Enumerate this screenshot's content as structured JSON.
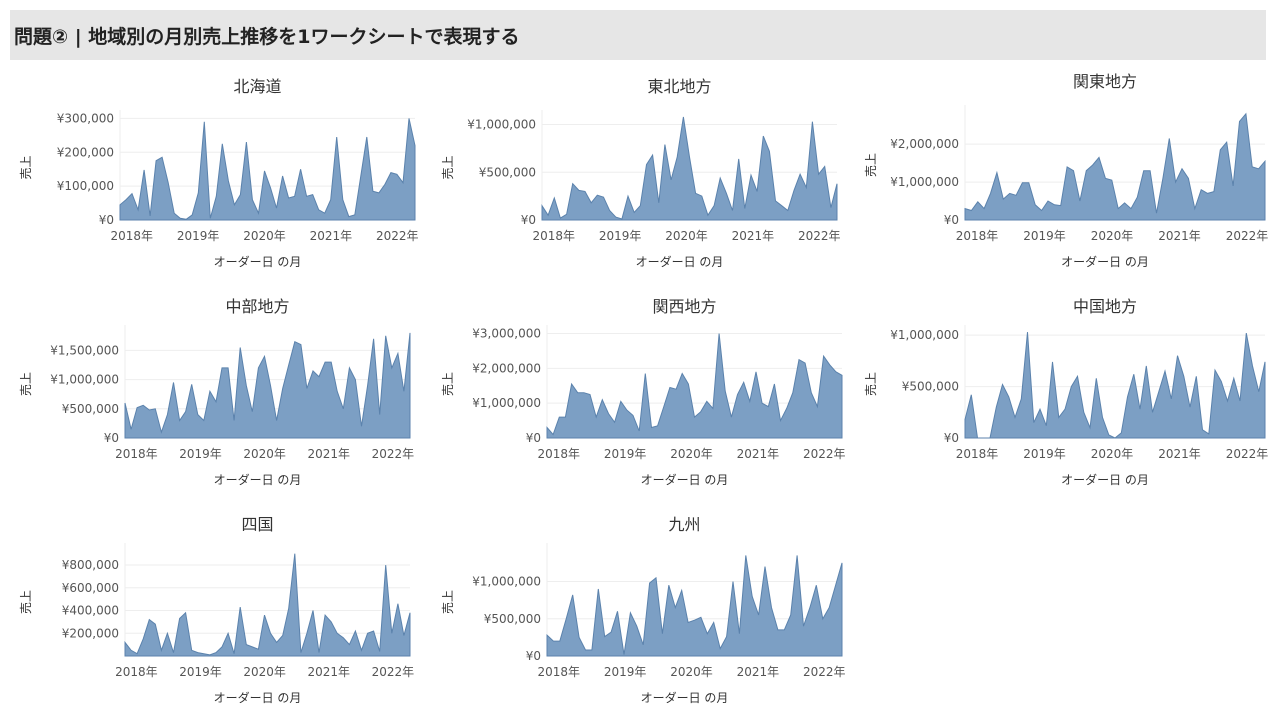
{
  "page": {
    "title": "問題② | 地域別の月別売上推移を1ワークシートで表現する"
  },
  "chart_data": [
    {
      "type": "area",
      "title": "北海道",
      "xlabel": "オーダー日 の月",
      "ylabel": "売上",
      "x_ticks": [
        "2018年",
        "2019年",
        "2020年",
        "2021年",
        "2022年"
      ],
      "y_ticks": [
        "¥0",
        "¥100,000",
        "¥200,000",
        "¥300,000"
      ],
      "y_tick_values": [
        0,
        100000,
        200000,
        300000
      ],
      "ylim": [
        0,
        310000
      ],
      "values": [
        45000,
        60000,
        78000,
        30000,
        148000,
        12000,
        175000,
        185000,
        110000,
        20000,
        5000,
        2000,
        15000,
        80000,
        290000,
        5000,
        70000,
        225000,
        115000,
        45000,
        75000,
        230000,
        60000,
        20000,
        145000,
        95000,
        35000,
        130000,
        65000,
        70000,
        150000,
        70000,
        75000,
        30000,
        20000,
        60000,
        245000,
        60000,
        10000,
        15000,
        130000,
        245000,
        85000,
        80000,
        105000,
        140000,
        135000,
        110000,
        300000,
        220000
      ]
    },
    {
      "type": "area",
      "title": "東北地方",
      "xlabel": "オーダー日 の月",
      "ylabel": "売上",
      "x_ticks": [
        "2018年",
        "2019年",
        "2020年",
        "2021年",
        "2022年"
      ],
      "y_ticks": [
        "¥0",
        "¥500,000",
        "¥1,000,000"
      ],
      "y_tick_values": [
        0,
        500000,
        1000000
      ],
      "ylim": [
        0,
        1100000
      ],
      "values": [
        150000,
        50000,
        230000,
        20000,
        60000,
        380000,
        310000,
        300000,
        180000,
        260000,
        240000,
        100000,
        30000,
        10000,
        250000,
        80000,
        150000,
        580000,
        680000,
        180000,
        790000,
        420000,
        660000,
        1080000,
        660000,
        280000,
        250000,
        50000,
        150000,
        440000,
        280000,
        100000,
        640000,
        120000,
        470000,
        300000,
        880000,
        720000,
        200000,
        150000,
        100000,
        310000,
        480000,
        340000,
        1030000,
        480000,
        560000,
        130000,
        380000
      ]
    },
    {
      "type": "area",
      "title": "関東地方",
      "xlabel": "オーダー日 の月",
      "ylabel": "売上",
      "x_ticks": [
        "2018年",
        "2019年",
        "2020年",
        "2021年",
        "2022年"
      ],
      "y_ticks": [
        "¥0",
        "¥1,000,000",
        "¥2,000,000"
      ],
      "y_tick_values": [
        0,
        1000000,
        2000000
      ],
      "ylim": [
        0,
        2900000
      ],
      "values": [
        300000,
        250000,
        480000,
        300000,
        700000,
        1250000,
        550000,
        700000,
        650000,
        980000,
        980000,
        400000,
        250000,
        500000,
        400000,
        380000,
        1400000,
        1300000,
        500000,
        1300000,
        1450000,
        1650000,
        1100000,
        1050000,
        300000,
        450000,
        300000,
        600000,
        1300000,
        1300000,
        180000,
        1100000,
        2150000,
        1000000,
        1350000,
        1100000,
        300000,
        800000,
        700000,
        750000,
        1850000,
        2050000,
        900000,
        2600000,
        2800000,
        1400000,
        1350000,
        1550000
      ]
    },
    {
      "type": "area",
      "title": "中部地方",
      "xlabel": "オーダー日 の月",
      "ylabel": "売上",
      "x_ticks": [
        "2018年",
        "2019年",
        "2020年",
        "2021年",
        "2022年"
      ],
      "y_ticks": [
        "¥0",
        "¥500,000",
        "¥1,000,000",
        "¥1,500,000"
      ],
      "y_tick_values": [
        0,
        500000,
        1000000,
        1500000
      ],
      "ylim": [
        0,
        1850000
      ],
      "values": [
        600000,
        150000,
        520000,
        560000,
        480000,
        500000,
        100000,
        400000,
        950000,
        300000,
        450000,
        920000,
        400000,
        300000,
        800000,
        620000,
        1200000,
        1200000,
        300000,
        1550000,
        900000,
        450000,
        1200000,
        1400000,
        900000,
        300000,
        850000,
        1250000,
        1650000,
        1600000,
        850000,
        1150000,
        1050000,
        1300000,
        1300000,
        800000,
        500000,
        1200000,
        1000000,
        200000,
        900000,
        1700000,
        400000,
        1750000,
        1200000,
        1450000,
        800000,
        1800000
      ]
    },
    {
      "type": "area",
      "title": "関西地方",
      "xlabel": "オーダー日 の月",
      "ylabel": "売上",
      "x_ticks": [
        "2018年",
        "2019年",
        "2020年",
        "2021年",
        "2022年"
      ],
      "y_ticks": [
        "¥0",
        "¥1,000,000",
        "¥2,000,000",
        "¥3,000,000"
      ],
      "y_tick_values": [
        0,
        1000000,
        2000000,
        3000000
      ],
      "ylim": [
        0,
        3100000
      ],
      "values": [
        300000,
        100000,
        600000,
        600000,
        1550000,
        1300000,
        1300000,
        1250000,
        600000,
        1100000,
        700000,
        450000,
        1050000,
        800000,
        650000,
        200000,
        1850000,
        300000,
        350000,
        900000,
        1450000,
        1400000,
        1850000,
        1550000,
        600000,
        750000,
        1050000,
        850000,
        3000000,
        1350000,
        600000,
        1250000,
        1600000,
        1050000,
        1900000,
        1000000,
        900000,
        1550000,
        500000,
        850000,
        1300000,
        2250000,
        2150000,
        1300000,
        900000,
        2350000,
        2100000,
        1900000,
        1800000
      ]
    },
    {
      "type": "area",
      "title": "中国地方",
      "xlabel": "オーダー日 の月",
      "ylabel": "売上",
      "x_ticks": [
        "2018年",
        "2019年",
        "2020年",
        "2021年",
        "2022年"
      ],
      "y_ticks": [
        "¥0",
        "¥500,000",
        "¥1,000,000"
      ],
      "y_tick_values": [
        0,
        500000,
        1000000
      ],
      "ylim": [
        0,
        1050000
      ],
      "values": [
        180000,
        420000,
        0,
        0,
        0,
        300000,
        520000,
        400000,
        200000,
        380000,
        1030000,
        150000,
        280000,
        120000,
        740000,
        200000,
        280000,
        500000,
        600000,
        250000,
        100000,
        580000,
        200000,
        30000,
        0,
        50000,
        400000,
        620000,
        280000,
        700000,
        250000,
        450000,
        650000,
        380000,
        800000,
        600000,
        300000,
        600000,
        80000,
        40000,
        660000,
        550000,
        360000,
        580000,
        360000,
        1020000,
        700000,
        450000,
        740000
      ]
    },
    {
      "type": "area",
      "title": "四国",
      "xlabel": "オーダー日 の月",
      "ylabel": "売上",
      "x_ticks": [
        "2018年",
        "2019年",
        "2020年",
        "2021年",
        "2022年"
      ],
      "y_ticks": [
        "¥200,000",
        "¥400,000",
        "¥600,000",
        "¥800,000"
      ],
      "y_tick_values": [
        200000,
        400000,
        600000,
        800000
      ],
      "ylim": [
        0,
        950000
      ],
      "values": [
        120000,
        50000,
        20000,
        150000,
        320000,
        280000,
        50000,
        200000,
        30000,
        330000,
        380000,
        50000,
        30000,
        20000,
        10000,
        30000,
        80000,
        200000,
        20000,
        430000,
        100000,
        80000,
        60000,
        360000,
        200000,
        120000,
        180000,
        420000,
        900000,
        30000,
        200000,
        400000,
        30000,
        360000,
        300000,
        200000,
        160000,
        100000,
        220000,
        50000,
        200000,
        220000,
        40000,
        800000,
        200000,
        460000,
        180000,
        380000
      ]
    },
    {
      "type": "area",
      "title": "九州",
      "xlabel": "オーダー日 の月",
      "ylabel": "売上",
      "x_ticks": [
        "2018年",
        "2019年",
        "2020年",
        "2021年",
        "2022年"
      ],
      "y_ticks": [
        "¥0",
        "¥500,000",
        "¥1,000,000"
      ],
      "y_tick_values": [
        0,
        500000,
        1000000
      ],
      "ylim": [
        0,
        1450000
      ],
      "values": [
        280000,
        200000,
        200000,
        500000,
        820000,
        250000,
        80000,
        80000,
        900000,
        260000,
        320000,
        600000,
        20000,
        580000,
        400000,
        150000,
        980000,
        1050000,
        300000,
        950000,
        650000,
        880000,
        450000,
        480000,
        520000,
        300000,
        450000,
        100000,
        260000,
        1000000,
        300000,
        1350000,
        800000,
        550000,
        1200000,
        650000,
        350000,
        350000,
        550000,
        1350000,
        400000,
        650000,
        950000,
        500000,
        650000,
        950000,
        1250000
      ]
    }
  ]
}
